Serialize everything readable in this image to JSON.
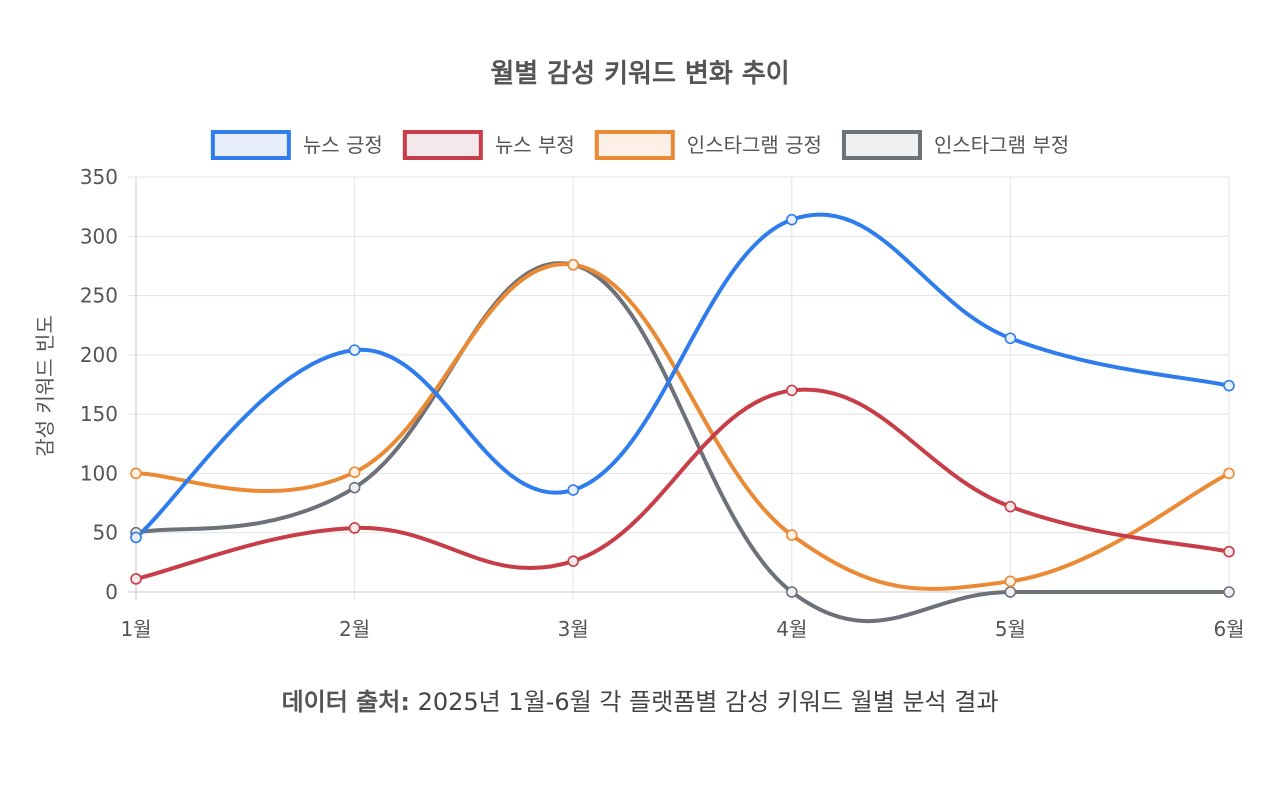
{
  "chart_data": {
    "type": "line",
    "title": "월별 감성 키워드 변화 추이",
    "ylabel": "감성 키워드 빈도",
    "xlabel": "",
    "categories": [
      "1월",
      "2월",
      "3월",
      "4월",
      "5월",
      "6월"
    ],
    "ylim": [
      0,
      350
    ],
    "yticks": [
      0,
      50,
      100,
      150,
      200,
      250,
      300,
      350
    ],
    "grid": true,
    "legend_position": "top",
    "curve": "smooth",
    "series": [
      {
        "name": "뉴스 긍정",
        "color": "#2f7ded",
        "fill": "#e9effa",
        "values": [
          46,
          204,
          86,
          314,
          214,
          174
        ]
      },
      {
        "name": "뉴스 부정",
        "color": "#c73d48",
        "fill": "#f5e8ea",
        "values": [
          11,
          54,
          26,
          170,
          72,
          34
        ]
      },
      {
        "name": "인스타그램 긍정",
        "color": "#eb8a35",
        "fill": "#fdf1e7",
        "values": [
          100,
          101,
          276,
          48,
          9,
          100
        ]
      },
      {
        "name": "인스타그램 부정",
        "color": "#6d727a",
        "fill": "#eff0f2",
        "values": [
          50,
          88,
          276,
          0,
          0,
          0
        ]
      }
    ]
  },
  "source": {
    "label": "데이터 출처:",
    "text": " 2025년 1월-6월 각 플랫폼별 감성 키워드 월별 분석 결과"
  }
}
